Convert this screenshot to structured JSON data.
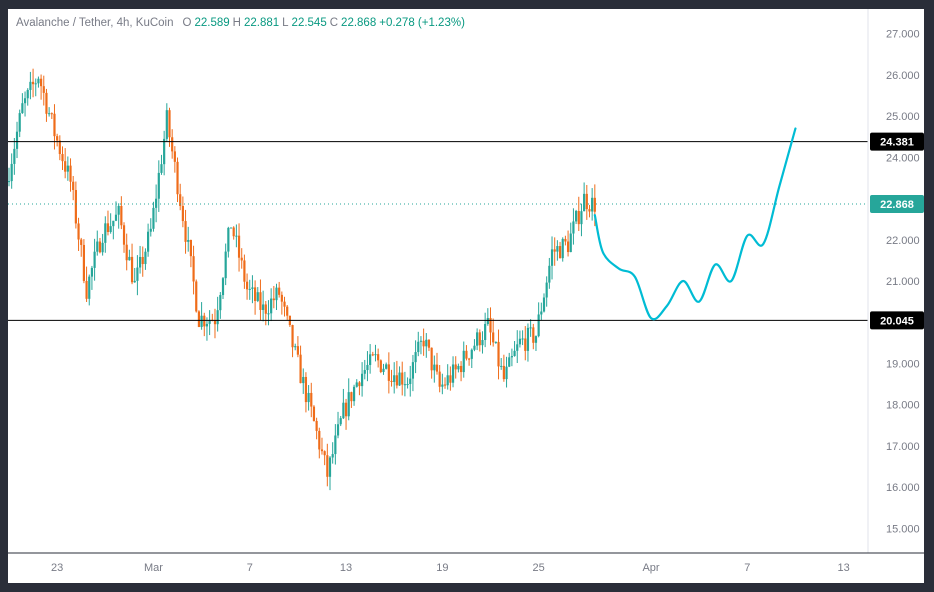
{
  "legend": {
    "symbol": "Avalanche / Tether, 4h, KuCoin",
    "open_label": "O",
    "open": "22.589",
    "high_label": "H",
    "high": "22.881",
    "low_label": "L",
    "low": "22.545",
    "close_label": "C",
    "close": "22.868",
    "change": "+0.278 (+1.23%)"
  },
  "colors": {
    "up": "#26a69a",
    "down": "#ef6c1a",
    "projection": "#00bcd4",
    "level_line": "#000000",
    "price_badge": "#26a69a",
    "level_badge": "#000000"
  },
  "chart_data": {
    "type": "candlestick",
    "ylim": [
      14.4,
      27.6
    ],
    "yticks": [
      "15.000",
      "16.000",
      "17.000",
      "18.000",
      "19.000",
      "20.000",
      "21.000",
      "22.000",
      "23.000",
      "24.000",
      "25.000",
      "26.000",
      "27.000"
    ],
    "x_domain_days": [
      -3.5,
      0
    ],
    "xticks": [
      {
        "label": "23"
      },
      {
        "label": "Mar"
      },
      {
        "label": "7"
      },
      {
        "label": "13"
      },
      {
        "label": "19"
      },
      {
        "label": "25"
      },
      {
        "label": "Apr"
      },
      {
        "label": "7"
      },
      {
        "label": "13"
      }
    ],
    "price_levels": [
      {
        "value": 24.381,
        "label": "24.381",
        "style": "solid"
      },
      {
        "value": 20.045,
        "label": "20.045",
        "style": "solid"
      }
    ],
    "last_price": {
      "value": 22.868,
      "label": "22.868"
    },
    "price_path": [
      [
        "Feb 20",
        23.4
      ],
      [
        "Feb 21",
        25.2
      ],
      [
        "Feb 22",
        26.0
      ],
      [
        "Feb 23",
        24.6
      ],
      [
        "Feb 24",
        23.4
      ],
      [
        "Feb 25",
        20.8
      ],
      [
        "Feb 26",
        22.2
      ],
      [
        "Feb 27",
        22.6
      ],
      [
        "Feb 28",
        20.9
      ],
      [
        "Mar 1",
        22.2
      ],
      [
        "Mar 2",
        24.9
      ],
      [
        "Mar 3",
        22.6
      ],
      [
        "Mar 4",
        20.1
      ],
      [
        "Mar 5",
        20.1
      ],
      [
        "Mar 6",
        22.4
      ],
      [
        "Mar 7",
        20.8
      ],
      [
        "Mar 8",
        20.3
      ],
      [
        "Mar 9",
        20.7
      ],
      [
        "Mar 10",
        19.2
      ],
      [
        "Mar 11",
        17.8
      ],
      [
        "Mar 12",
        16.3
      ],
      [
        "Mar 13",
        17.8
      ],
      [
        "Mar 14",
        18.7
      ],
      [
        "Mar 15",
        19.1
      ],
      [
        "Mar 16",
        18.8
      ],
      [
        "Mar 17",
        18.6
      ],
      [
        "Mar 18",
        19.6
      ],
      [
        "Mar 19",
        18.4
      ],
      [
        "Mar 20",
        18.8
      ],
      [
        "Mar 21",
        19.4
      ],
      [
        "Mar 22",
        19.9
      ],
      [
        "Mar 23",
        18.6
      ],
      [
        "Mar 24",
        19.5
      ],
      [
        "Mar 25",
        19.7
      ],
      [
        "Mar 26",
        21.7
      ],
      [
        "Mar 27",
        21.9
      ],
      [
        "Mar 28",
        23.0
      ],
      [
        "Mar 28 12:00",
        22.87
      ]
    ],
    "projection_path": [
      [
        "Mar 28 12:00",
        22.6
      ],
      [
        "Mar 29",
        21.7
      ],
      [
        "Mar 30",
        21.3
      ],
      [
        "Mar 31",
        21.1
      ],
      [
        "Apr 1",
        20.1
      ],
      [
        "Apr 2",
        20.4
      ],
      [
        "Apr 3",
        21.0
      ],
      [
        "Apr 4",
        20.5
      ],
      [
        "Apr 5",
        21.4
      ],
      [
        "Apr 6",
        21.0
      ],
      [
        "Apr 7",
        22.1
      ],
      [
        "Apr 8",
        21.9
      ],
      [
        "Apr 9",
        23.3
      ],
      [
        "Apr 10",
        24.7
      ]
    ]
  }
}
